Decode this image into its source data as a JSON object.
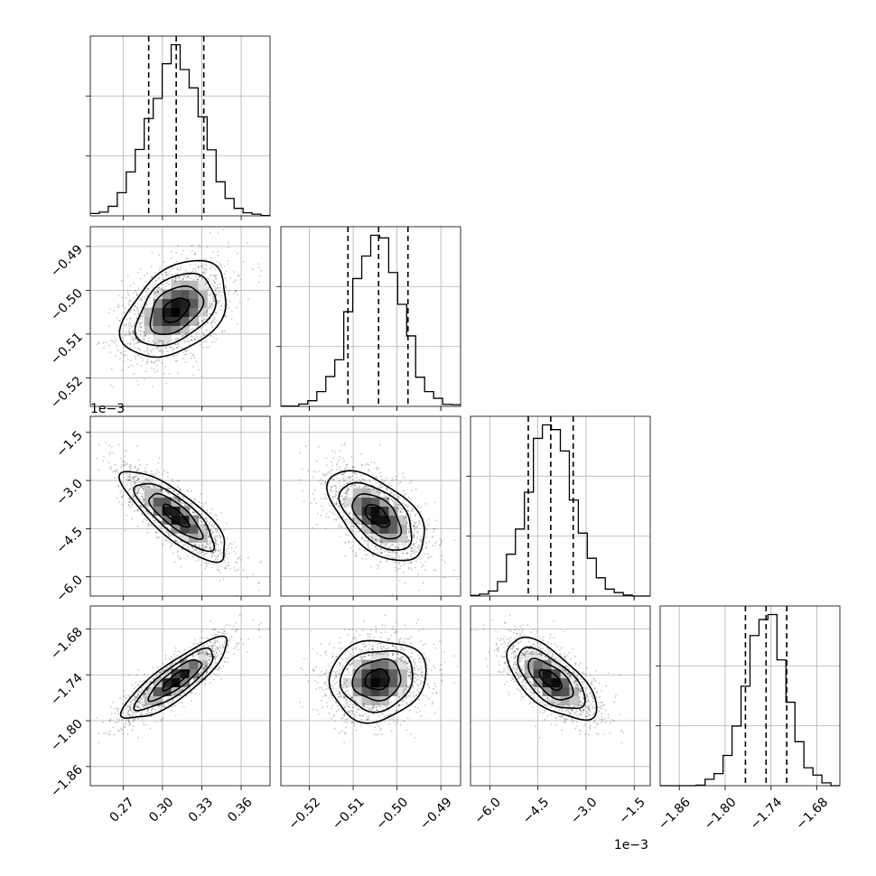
{
  "chart_data": {
    "type": "corner",
    "parameters": [
      {
        "range": [
          0.245,
          0.382
        ],
        "ticks": [
          0.27,
          0.3,
          0.33,
          0.36
        ],
        "tick_labels": [
          "0.27",
          "0.30",
          "0.33",
          "0.36"
        ],
        "center": 0.31,
        "sigma": 0.02,
        "quantiles": [
          0.2895,
          0.3105,
          0.3315
        ],
        "offset_label": ""
      },
      {
        "range": [
          -0.5265,
          -0.4855
        ],
        "ticks": [
          -0.52,
          -0.51,
          -0.5,
          -0.49
        ],
        "tick_labels": [
          "−0.52",
          "−0.51",
          "−0.50",
          "−0.49"
        ],
        "center": -0.5045,
        "sigma": 0.0055,
        "quantiles": [
          -0.5112,
          -0.5042,
          -0.4975
        ],
        "offset_label": ""
      },
      {
        "range": [
          -6.6,
          -1.0
        ],
        "ticks": [
          -6.0,
          -4.5,
          -3.0,
          -1.5
        ],
        "tick_labels": [
          "−6.0",
          "−4.5",
          "−3.0",
          "−1.5"
        ],
        "center": -4.1,
        "sigma": 0.7,
        "quantiles": [
          -4.8,
          -4.1,
          -3.4
        ],
        "offset_label": "1e−3"
      },
      {
        "range": [
          -1.885,
          -1.65
        ],
        "ticks": [
          -1.86,
          -1.8,
          -1.74,
          -1.68
        ],
        "tick_labels": [
          "−1.86",
          "−1.80",
          "−1.74",
          "−1.68"
        ],
        "center": -1.7465,
        "sigma": 0.0265,
        "quantiles": [
          -1.7735,
          -1.7465,
          -1.7195
        ],
        "offset_label": ""
      }
    ],
    "correlations": [
      [
        1.0,
        0.4,
        -0.8,
        0.85
      ],
      [
        0.4,
        1.0,
        -0.55,
        0.1
      ],
      [
        -0.8,
        -0.55,
        1.0,
        -0.65
      ],
      [
        0.85,
        0.1,
        -0.65,
        1.0
      ]
    ],
    "grid": true,
    "histogram_bins": 20,
    "quantile_levels": [
      0.16,
      0.5,
      0.84
    ],
    "contour_sigmas": [
      0.5,
      1.0,
      1.5,
      2.0
    ]
  }
}
